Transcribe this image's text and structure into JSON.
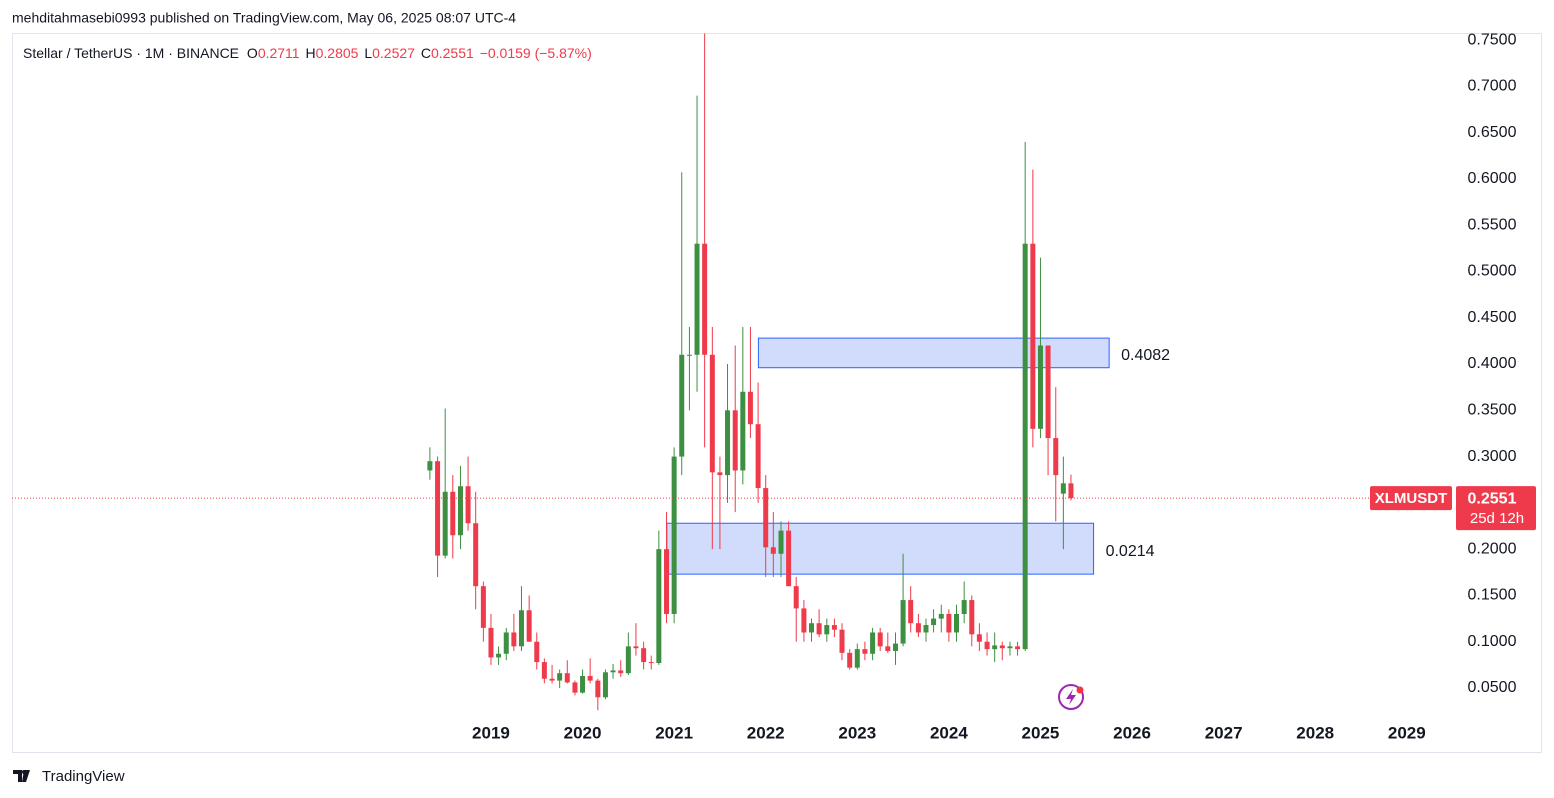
{
  "header": {
    "byline": "mehditahmasebi0993 published on TradingView.com, May 06, 2025 08:07 UTC-4"
  },
  "chart_data": {
    "type": "candlestick",
    "title": "Stellar / TetherUS · 1M · BINANCE",
    "legend_labels": {
      "open": "O",
      "high": "H",
      "low": "L",
      "close": "C"
    },
    "change": "−0.0159 (−5.87%)",
    "symbol": "XLMUSDT",
    "countdown": "25d 12h",
    "up_color": "#3d8f41",
    "down_color": "#ef3a4b",
    "x": [
      2018.333,
      2018.417,
      2018.5,
      2018.583,
      2018.667,
      2018.75,
      2018.833,
      2018.917,
      2019,
      2019.083,
      2019.167,
      2019.25,
      2019.333,
      2019.417,
      2019.5,
      2019.583,
      2019.667,
      2019.75,
      2019.833,
      2019.917,
      2020,
      2020.083,
      2020.167,
      2020.25,
      2020.333,
      2020.417,
      2020.5,
      2020.583,
      2020.667,
      2020.75,
      2020.833,
      2020.917,
      2021,
      2021.083,
      2021.167,
      2021.25,
      2021.333,
      2021.417,
      2021.5,
      2021.583,
      2021.667,
      2021.75,
      2021.833,
      2021.917,
      2022,
      2022.083,
      2022.167,
      2022.25,
      2022.333,
      2022.417,
      2022.5,
      2022.583,
      2022.667,
      2022.75,
      2022.833,
      2022.917,
      2023,
      2023.083,
      2023.167,
      2023.25,
      2023.333,
      2023.417,
      2023.5,
      2023.583,
      2023.667,
      2023.75,
      2023.833,
      2023.917,
      2024,
      2024.083,
      2024.167,
      2024.25,
      2024.333,
      2024.417,
      2024.5,
      2024.583,
      2024.667,
      2024.75,
      2024.833,
      2024.917,
      2025,
      2025.083,
      2025.167,
      2025.25,
      2025.333
    ],
    "open": [
      0.285,
      0.295,
      0.193,
      0.262,
      0.215,
      0.268,
      0.228,
      0.16,
      0.115,
      0.083,
      0.087,
      0.11,
      0.095,
      0.134,
      0.1,
      0.078,
      0.06,
      0.058,
      0.066,
      0.056,
      0.045,
      0.063,
      0.058,
      0.04,
      0.067,
      0.069,
      0.066,
      0.095,
      0.093,
      0.078,
      0.077,
      0.2,
      0.13,
      0.3,
      0.41,
      0.41,
      0.53,
      0.41,
      0.283,
      0.28,
      0.35,
      0.285,
      0.37,
      0.335,
      0.266,
      0.202,
      0.195,
      0.22,
      0.16,
      0.136,
      0.11,
      0.12,
      0.108,
      0.118,
      0.113,
      0.088,
      0.072,
      0.092,
      0.087,
      0.11,
      0.095,
      0.09,
      0.098,
      0.145,
      0.12,
      0.11,
      0.118,
      0.125,
      0.13,
      0.11,
      0.13,
      0.145,
      0.108,
      0.1,
      0.092,
      0.096,
      0.093,
      0.095,
      0.092,
      0.53,
      0.33,
      0.42,
      0.32,
      0.26,
      0.2711
    ],
    "high": [
      0.31,
      0.3,
      0.352,
      0.28,
      0.29,
      0.3,
      0.262,
      0.165,
      0.13,
      0.095,
      0.115,
      0.13,
      0.16,
      0.15,
      0.11,
      0.082,
      0.075,
      0.07,
      0.08,
      0.058,
      0.07,
      0.082,
      0.06,
      0.07,
      0.076,
      0.08,
      0.11,
      0.12,
      0.1,
      0.085,
      0.22,
      0.24,
      0.31,
      0.607,
      0.44,
      0.69,
      0.757,
      0.44,
      0.3,
      0.4,
      0.42,
      0.44,
      0.44,
      0.38,
      0.28,
      0.24,
      0.23,
      0.23,
      0.17,
      0.145,
      0.125,
      0.135,
      0.125,
      0.125,
      0.12,
      0.092,
      0.098,
      0.1,
      0.115,
      0.115,
      0.11,
      0.11,
      0.195,
      0.16,
      0.13,
      0.125,
      0.135,
      0.14,
      0.135,
      0.14,
      0.165,
      0.15,
      0.12,
      0.11,
      0.11,
      0.1,
      0.1,
      0.1,
      0.64,
      0.61,
      0.515,
      0.42,
      0.375,
      0.3,
      0.2805
    ],
    "low": [
      0.275,
      0.17,
      0.19,
      0.19,
      0.2,
      0.22,
      0.135,
      0.1,
      0.075,
      0.075,
      0.08,
      0.09,
      0.09,
      0.1,
      0.07,
      0.055,
      0.055,
      0.05,
      0.055,
      0.042,
      0.044,
      0.055,
      0.026,
      0.038,
      0.06,
      0.062,
      0.064,
      0.085,
      0.07,
      0.07,
      0.075,
      0.12,
      0.12,
      0.28,
      0.35,
      0.37,
      0.31,
      0.2,
      0.2,
      0.25,
      0.24,
      0.27,
      0.32,
      0.25,
      0.17,
      0.17,
      0.17,
      0.16,
      0.1,
      0.1,
      0.1,
      0.105,
      0.1,
      0.105,
      0.08,
      0.07,
      0.07,
      0.08,
      0.08,
      0.09,
      0.088,
      0.075,
      0.095,
      0.11,
      0.105,
      0.1,
      0.11,
      0.11,
      0.1,
      0.1,
      0.12,
      0.095,
      0.09,
      0.085,
      0.078,
      0.08,
      0.085,
      0.085,
      0.09,
      0.31,
      0.32,
      0.28,
      0.23,
      0.2,
      0.2527
    ],
    "close": [
      0.295,
      0.193,
      0.262,
      0.215,
      0.268,
      0.228,
      0.16,
      0.115,
      0.083,
      0.087,
      0.11,
      0.095,
      0.134,
      0.1,
      0.078,
      0.06,
      0.058,
      0.066,
      0.056,
      0.045,
      0.063,
      0.058,
      0.04,
      0.067,
      0.069,
      0.066,
      0.095,
      0.093,
      0.078,
      0.077,
      0.2,
      0.13,
      0.3,
      0.41,
      0.41,
      0.53,
      0.41,
      0.283,
      0.28,
      0.35,
      0.285,
      0.37,
      0.335,
      0.266,
      0.202,
      0.195,
      0.22,
      0.16,
      0.136,
      0.11,
      0.12,
      0.108,
      0.118,
      0.113,
      0.088,
      0.072,
      0.092,
      0.087,
      0.11,
      0.095,
      0.09,
      0.098,
      0.145,
      0.12,
      0.11,
      0.118,
      0.125,
      0.13,
      0.11,
      0.13,
      0.145,
      0.108,
      0.1,
      0.092,
      0.096,
      0.093,
      0.095,
      0.092,
      0.53,
      0.33,
      0.42,
      0.32,
      0.28,
      0.2711,
      0.2551
    ],
    "xlim": [
      2013.77,
      2029.45
    ],
    "xticks": [
      2019,
      2020,
      2021,
      2022,
      2023,
      2024,
      2025,
      2026,
      2027,
      2028,
      2029
    ],
    "ylim": [
      0.0176,
      0.7576
    ],
    "yticks": [
      {
        "value": 0.05,
        "label": "0.0500"
      },
      {
        "value": 0.1,
        "label": "0.1000"
      },
      {
        "value": 0.15,
        "label": "0.1500"
      },
      {
        "value": 0.2,
        "label": "0.2000"
      },
      {
        "value": 0.25,
        "label": "0.2500"
      },
      {
        "value": 0.3,
        "label": "0.3000"
      },
      {
        "value": 0.35,
        "label": "0.3500"
      },
      {
        "value": 0.4,
        "label": "0.4000"
      },
      {
        "value": 0.45,
        "label": "0.4500"
      },
      {
        "value": 0.5,
        "label": "0.5000"
      },
      {
        "value": 0.55,
        "label": "0.5500"
      },
      {
        "value": 0.6,
        "label": "0.6000"
      },
      {
        "value": 0.65,
        "label": "0.6500"
      },
      {
        "value": 0.7,
        "label": "0.7000"
      },
      {
        "value": 0.75,
        "label": "0.7500"
      }
    ],
    "zones": [
      {
        "label": "0.4082",
        "top": 0.428,
        "bottom": 0.396,
        "start": 2021.92,
        "end": 2025.75,
        "color": "#d1dcfd"
      },
      {
        "label": "0.0214",
        "top": 0.228,
        "bottom": 0.173,
        "start": 2020.92,
        "end": 2025.58,
        "color": "#d1dcfd"
      }
    ]
  },
  "footer": {
    "brand": "TradingView"
  }
}
